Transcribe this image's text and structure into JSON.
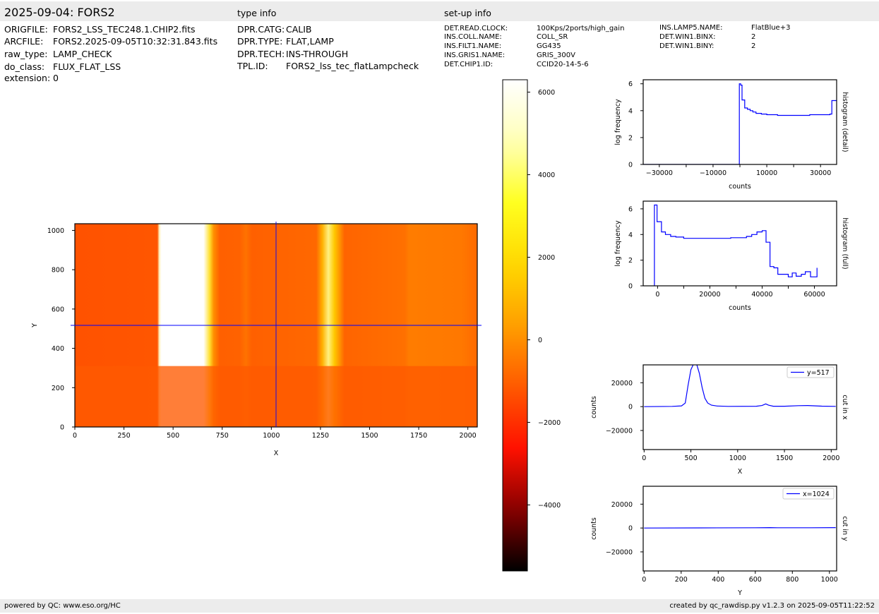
{
  "header": {
    "title": "2025-09-04: FORS2",
    "type_info_label": "type info",
    "setup_info_label": "set-up info"
  },
  "file_info": [
    {
      "key": "ORIGFILE:",
      "value": "FORS2_LSS_TEC248.1.CHIP2.fits"
    },
    {
      "key": "ARCFILE:",
      "value": "FORS2.2025-09-05T10:32:31.843.fits"
    },
    {
      "key": "raw_type:",
      "value": "LAMP_CHECK"
    },
    {
      "key": "do_class:",
      "value": "FLUX_FLAT_LSS"
    },
    {
      "key": "extension:",
      "value": "0"
    }
  ],
  "type_info": [
    {
      "key": "DPR.CATG:",
      "value": "CALIB"
    },
    {
      "key": "DPR.TYPE:",
      "value": "FLAT,LAMP"
    },
    {
      "key": "DPR.TECH:",
      "value": "INS-THROUGH"
    },
    {
      "key": "TPL.ID:",
      "value": "FORS2_lss_tec_flatLampcheck"
    }
  ],
  "setup_info": [
    {
      "key": "DET.READ.CLOCK:",
      "value": "100Kps/2ports/high_gain"
    },
    {
      "key": "INS.COLL.NAME:",
      "value": "COLL_SR"
    },
    {
      "key": "INS.FILT1.NAME:",
      "value": "GG435"
    },
    {
      "key": "INS.GRIS1.NAME:",
      "value": "GRIS_300V"
    },
    {
      "key": "DET.CHIP1.ID:",
      "value": "CCID20-14-5-6"
    },
    {
      "key": "INS.LAMP5.NAME:",
      "value": "FlatBlue+3"
    },
    {
      "key": "DET.WIN1.BINX:",
      "value": "2"
    },
    {
      "key": "DET.WIN1.BINY:",
      "value": "2"
    }
  ],
  "footer": {
    "left": "powered by QC: www.eso.org/HC",
    "right": "created by qc_rawdisp.py v1.2.3 on 2025-09-05T11:22:52"
  },
  "colors": {
    "line": "#0000ff",
    "crosshair": "#0000ff",
    "band": "#ececec",
    "cmap": [
      "#000000",
      "#880000",
      "#ff1100",
      "#ff5a00",
      "#ff9f00",
      "#ffd800",
      "#ffff20",
      "#ffffb8",
      "#ffffff"
    ]
  },
  "chart_data": [
    {
      "type": "heatmap",
      "name": "image",
      "xlabel": "X",
      "ylabel": "Y",
      "xlim": [
        0,
        2048
      ],
      "ylim": [
        0,
        1034
      ],
      "x_ticks": [
        0,
        250,
        500,
        750,
        1000,
        1250,
        1500,
        1750,
        2000
      ],
      "y_ticks": [
        0,
        200,
        400,
        600,
        800,
        1000
      ],
      "crosshair": {
        "x": 1024,
        "y": 517
      },
      "colorbar": {
        "min": -5600,
        "max": 6300,
        "ticks": [
          -4000,
          -2000,
          0,
          2000,
          4000,
          6000
        ]
      },
      "grid": false
    },
    {
      "type": "line",
      "name": "histogram (detail)",
      "xlabel": "counts",
      "ylabel": "log frequency",
      "right_label": "histogram (detail)",
      "xlim": [
        -36000,
        36000
      ],
      "ylim": [
        0,
        6.3
      ],
      "x_ticks": [
        -30000,
        -10000,
        10000,
        30000
      ],
      "x_minor_ticks": [
        -20000,
        0,
        20000
      ],
      "y_ticks": [
        0,
        2,
        4,
        6
      ],
      "x": [
        -36000,
        -200,
        -200,
        300,
        300,
        800,
        800,
        1800,
        1800,
        2800,
        2800,
        3800,
        3800,
        4800,
        4800,
        6000,
        6000,
        8000,
        8000,
        10000,
        10000,
        14000,
        14000,
        26000,
        26000,
        33500,
        33500,
        34200,
        34200,
        36000
      ],
      "y": [
        0,
        0,
        6.0,
        6.0,
        5.9,
        5.9,
        4.8,
        4.8,
        4.2,
        4.2,
        4.1,
        4.1,
        4.0,
        4.0,
        3.9,
        3.9,
        3.8,
        3.8,
        3.75,
        3.75,
        3.7,
        3.7,
        3.65,
        3.65,
        3.7,
        3.7,
        3.75,
        3.75,
        4.75,
        4.75
      ],
      "grid": false
    },
    {
      "type": "line",
      "name": "histogram (full)",
      "xlabel": "counts",
      "ylabel": "log frequency",
      "right_label": "histogram (full)",
      "xlim": [
        -5500,
        68500
      ],
      "ylim": [
        0,
        6.6
      ],
      "x_ticks": [
        0,
        20000,
        40000,
        60000
      ],
      "x_minor_ticks": [
        10000,
        30000,
        50000
      ],
      "y_ticks": [
        0,
        2,
        4,
        6
      ],
      "x": [
        -1200,
        -1200,
        -200,
        -200,
        1500,
        1500,
        3000,
        3000,
        5000,
        5000,
        7000,
        7000,
        10000,
        10000,
        28000,
        28000,
        34000,
        34000,
        36000,
        36000,
        38000,
        38000,
        40000,
        40000,
        41500,
        41500,
        43000,
        43000,
        44500,
        44500,
        46000,
        46000,
        50000,
        50000,
        51500,
        51500,
        53000,
        53000,
        55000,
        55000,
        56500,
        56500,
        58500,
        58500,
        61000,
        61000
      ],
      "y": [
        0,
        6.3,
        6.3,
        5.0,
        5.0,
        4.2,
        4.2,
        4.0,
        4.0,
        3.85,
        3.85,
        3.8,
        3.8,
        3.7,
        3.7,
        3.75,
        3.75,
        3.85,
        3.85,
        4.0,
        4.0,
        4.2,
        4.2,
        4.3,
        4.3,
        3.4,
        3.4,
        1.5,
        1.5,
        1.4,
        1.4,
        0.9,
        0.9,
        0.7,
        0.7,
        1.0,
        1.0,
        0.75,
        0.75,
        0.9,
        0.9,
        1.1,
        1.1,
        0.7,
        0.7,
        1.4
      ],
      "grid": false
    },
    {
      "type": "line",
      "name": "cut in x",
      "xlabel": "X",
      "ylabel": "counts",
      "right_label": "cut in x",
      "legend": "y=517",
      "legend_position": "top-right",
      "xlim": [
        -10,
        2058
      ],
      "ylim": [
        -36000,
        35000
      ],
      "x_ticks": [
        0,
        500,
        1000,
        1500,
        2000
      ],
      "y_ticks": [
        -20000,
        0,
        20000
      ],
      "x": [
        0,
        300,
        400,
        440,
        470,
        500,
        530,
        560,
        590,
        620,
        650,
        680,
        720,
        780,
        900,
        1200,
        1260,
        1300,
        1330,
        1380,
        1500,
        1650,
        1750,
        1900,
        2048
      ],
      "y": [
        0,
        200,
        600,
        3000,
        18000,
        31000,
        36000,
        36000,
        28000,
        16000,
        7000,
        3000,
        1200,
        500,
        200,
        300,
        900,
        2300,
        1200,
        300,
        300,
        800,
        900,
        400,
        200
      ],
      "grid": false
    },
    {
      "type": "line",
      "name": "cut in y",
      "xlabel": "Y",
      "ylabel": "counts",
      "right_label": "cut in y",
      "legend": "x=1024",
      "legend_position": "top-right",
      "xlim": [
        -5,
        1039
      ],
      "ylim": [
        -36000,
        35000
      ],
      "x_ticks": [
        0,
        200,
        400,
        600,
        800,
        1000
      ],
      "y_ticks": [
        -20000,
        0,
        20000
      ],
      "x": [
        0,
        300,
        600,
        680,
        720,
        900,
        1034
      ],
      "y": [
        0,
        100,
        200,
        300,
        200,
        200,
        300
      ],
      "grid": false
    }
  ]
}
